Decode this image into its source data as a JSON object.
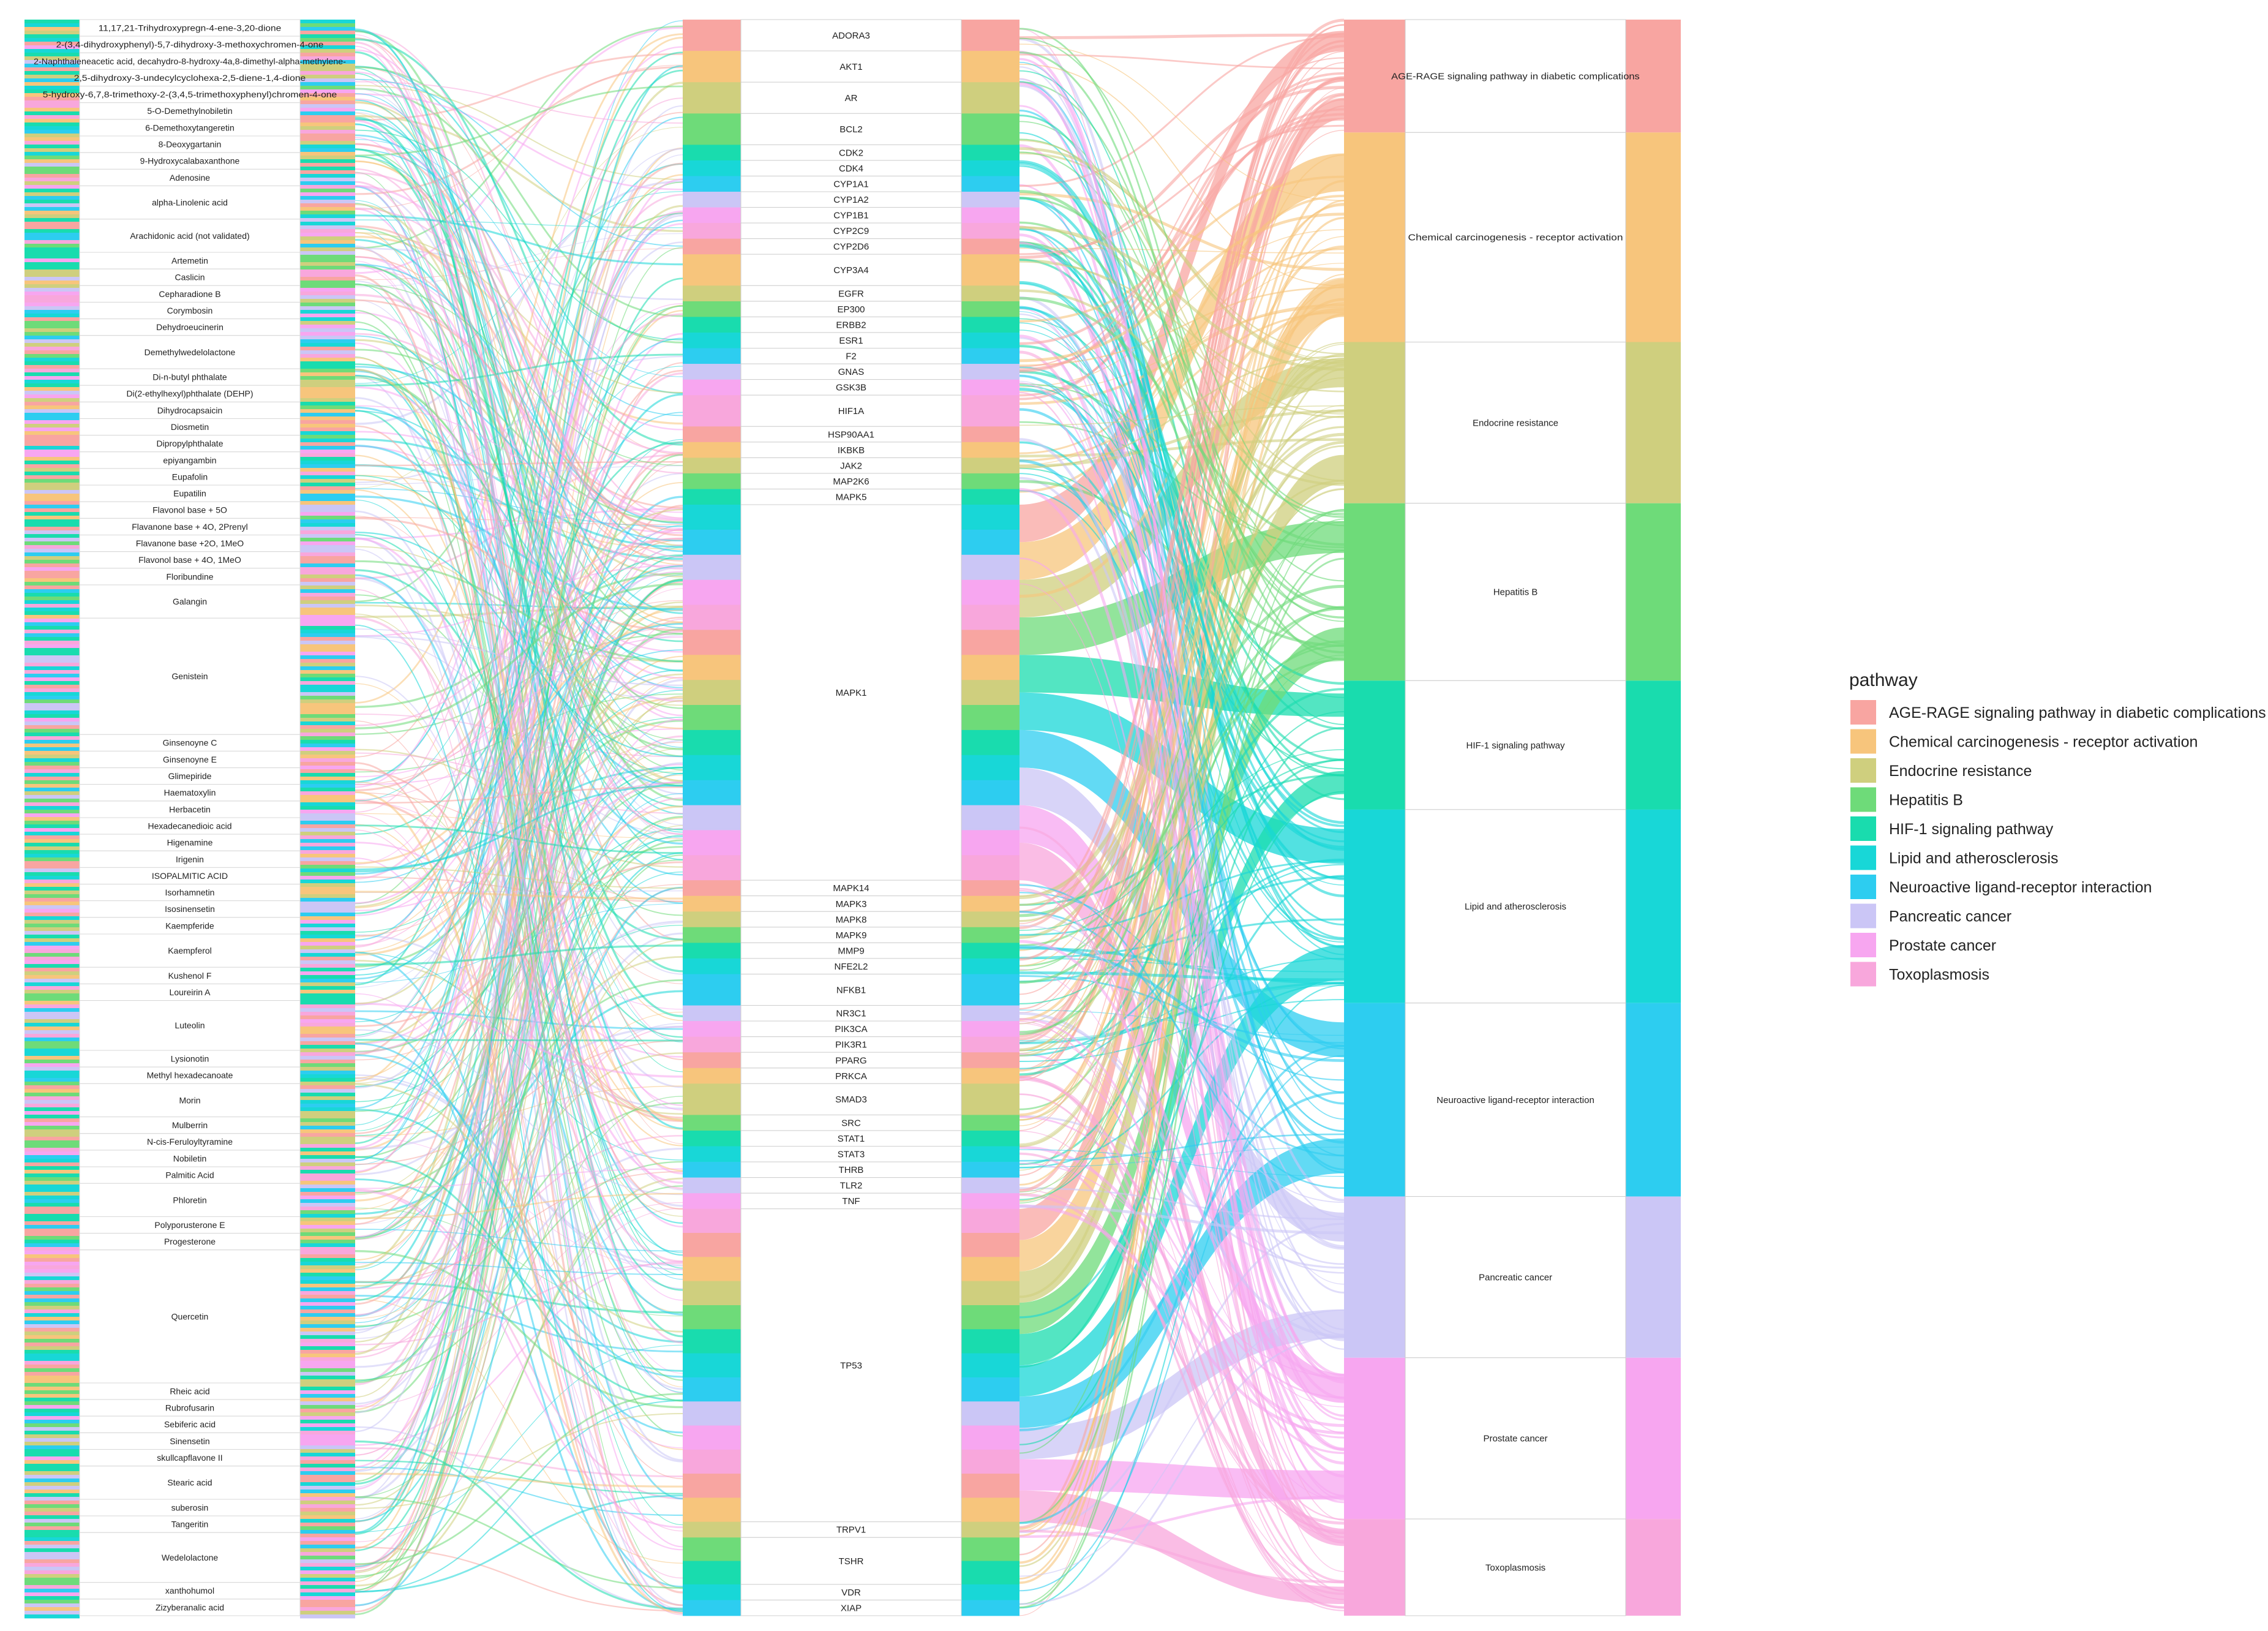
{
  "pathways": [
    {
      "label": "AGE-RAGE signaling pathway in diabetic complications",
      "color": "#F8A5A1"
    },
    {
      "label": "Chemical carcinogenesis - receptor activation",
      "color": "#F7C57C"
    },
    {
      "label": "Endocrine resistance",
      "color": "#CFCF7E"
    },
    {
      "label": "Hepatitis B",
      "color": "#6EDB79"
    },
    {
      "label": "HIF-1 signaling pathway",
      "color": "#19DCAE"
    },
    {
      "label": "Lipid and atherosclerosis",
      "color": "#18D7D7"
    },
    {
      "label": "Neuroactive ligand-receptor interaction",
      "color": "#2DCDF0"
    },
    {
      "label": "Pancreatic cancer",
      "color": "#CBC6F6"
    },
    {
      "label": "Prostate cancer",
      "color": "#F7A6F0"
    },
    {
      "label": "Toxoplasmosis",
      "color": "#F8A7DC"
    }
  ],
  "legend": {
    "title": "pathway"
  },
  "compounds": [
    {
      "label": "11,17,21-Trihydroxypregn-4-ene-3,20-dione",
      "w": 1
    },
    {
      "label": "2-(3,4-dihydroxyphenyl)-5,7-dihydroxy-3-methoxychromen-4-one",
      "w": 1
    },
    {
      "label": "2-Naphthaleneacetic acid, decahydro-8-hydroxy-4a,8-dimethyl-alpha-methylene-",
      "w": 1
    },
    {
      "label": "2,5-dihydroxy-3-undecylcyclohexa-2,5-diene-1,4-dione",
      "w": 1
    },
    {
      "label": "5-hydroxy-6,7,8-trimethoxy-2-(3,4,5-trimethoxyphenyl)chromen-4-one",
      "w": 1
    },
    {
      "label": "5-O-Demethylnobiletin",
      "w": 1
    },
    {
      "label": "6-Demethoxytangeretin",
      "w": 1
    },
    {
      "label": "8-Deoxygartanin",
      "w": 1
    },
    {
      "label": "9-Hydroxycalabaxanthone",
      "w": 1
    },
    {
      "label": "Adenosine",
      "w": 1
    },
    {
      "label": "alpha-Linolenic acid",
      "w": 2
    },
    {
      "label": "Arachidonic acid (not validated)",
      "w": 2
    },
    {
      "label": "Artemetin",
      "w": 1
    },
    {
      "label": "Caslicin",
      "w": 1
    },
    {
      "label": "Cepharadione B",
      "w": 1
    },
    {
      "label": "Corymbosin",
      "w": 1
    },
    {
      "label": "Dehydroeucinerin",
      "w": 1
    },
    {
      "label": "Demethylwedelolactone",
      "w": 2
    },
    {
      "label": "Di-n-butyl phthalate",
      "w": 1
    },
    {
      "label": "Di(2-ethylhexyl)phthalate (DEHP)",
      "w": 1
    },
    {
      "label": "Dihydrocapsaicin",
      "w": 1
    },
    {
      "label": "Diosmetin",
      "w": 1
    },
    {
      "label": "Dipropylphthalate",
      "w": 1
    },
    {
      "label": "epiyangambin",
      "w": 1
    },
    {
      "label": "Eupafolin",
      "w": 1
    },
    {
      "label": "Eupatilin",
      "w": 1
    },
    {
      "label": "Flavonol base + 5O",
      "w": 1
    },
    {
      "label": "Flavanone base + 4O, 2Prenyl",
      "w": 1
    },
    {
      "label": "Flavanone base +2O, 1MeO",
      "w": 1
    },
    {
      "label": "Flavonol base + 4O, 1MeO",
      "w": 1
    },
    {
      "label": "Floribundine",
      "w": 1
    },
    {
      "label": "Galangin",
      "w": 2
    },
    {
      "label": "Genistein",
      "w": 7
    },
    {
      "label": "Ginsenoyne C",
      "w": 1
    },
    {
      "label": "Ginsenoyne E",
      "w": 1
    },
    {
      "label": "Glimepiride",
      "w": 1
    },
    {
      "label": "Haematoxylin",
      "w": 1
    },
    {
      "label": "Herbacetin",
      "w": 1
    },
    {
      "label": "Hexadecanedioic acid",
      "w": 1
    },
    {
      "label": "Higenamine",
      "w": 1
    },
    {
      "label": "Irigenin",
      "w": 1
    },
    {
      "label": "ISOPALMITIC ACID",
      "w": 1
    },
    {
      "label": "Isorhamnetin",
      "w": 1
    },
    {
      "label": "Isosinensetin",
      "w": 1
    },
    {
      "label": "Kaempferide",
      "w": 1
    },
    {
      "label": "Kaempferol",
      "w": 2
    },
    {
      "label": "Kushenol F",
      "w": 1
    },
    {
      "label": "Loureirin A",
      "w": 1
    },
    {
      "label": "Luteolin",
      "w": 3
    },
    {
      "label": "Lysionotin",
      "w": 1
    },
    {
      "label": "Methyl hexadecanoate",
      "w": 1
    },
    {
      "label": "Morin",
      "w": 2
    },
    {
      "label": "Mulberrin",
      "w": 1
    },
    {
      "label": "N-cis-Feruloyltyramine",
      "w": 1
    },
    {
      "label": "Nobiletin",
      "w": 1
    },
    {
      "label": "Palmitic Acid",
      "w": 1
    },
    {
      "label": "Phloretin",
      "w": 2
    },
    {
      "label": "Polyporusterone E",
      "w": 1
    },
    {
      "label": "Progesterone",
      "w": 1
    },
    {
      "label": "Quercetin",
      "w": 8
    },
    {
      "label": "Rheic acid",
      "w": 1
    },
    {
      "label": "Rubrofusarin",
      "w": 1
    },
    {
      "label": "Sebiferic acid",
      "w": 1
    },
    {
      "label": "Sinensetin",
      "w": 1
    },
    {
      "label": "skullcapflavone II",
      "w": 1
    },
    {
      "label": "Stearic acid",
      "w": 2
    },
    {
      "label": "suberosin",
      "w": 1
    },
    {
      "label": "Tangeritin",
      "w": 1
    },
    {
      "label": "Wedelolactone",
      "w": 3
    },
    {
      "label": "xanthohumol",
      "w": 1
    },
    {
      "label": "Zizyberanalic acid",
      "w": 1
    }
  ],
  "targets": [
    {
      "label": "ADORA3",
      "w": 2
    },
    {
      "label": "AKT1",
      "w": 2
    },
    {
      "label": "AR",
      "w": 2
    },
    {
      "label": "BCL2",
      "w": 2
    },
    {
      "label": "CDK2",
      "w": 1
    },
    {
      "label": "CDK4",
      "w": 1
    },
    {
      "label": "CYP1A1",
      "w": 1
    },
    {
      "label": "CYP1A2",
      "w": 1
    },
    {
      "label": "CYP1B1",
      "w": 1
    },
    {
      "label": "CYP2C9",
      "w": 1
    },
    {
      "label": "CYP2D6",
      "w": 1
    },
    {
      "label": "CYP3A4",
      "w": 2
    },
    {
      "label": "EGFR",
      "w": 1
    },
    {
      "label": "EP300",
      "w": 1
    },
    {
      "label": "ERBB2",
      "w": 1
    },
    {
      "label": "ESR1",
      "w": 1
    },
    {
      "label": "F2",
      "w": 1
    },
    {
      "label": "GNAS",
      "w": 1
    },
    {
      "label": "GSK3B",
      "w": 1
    },
    {
      "label": "HIF1A",
      "w": 2
    },
    {
      "label": "HSP90AA1",
      "w": 1
    },
    {
      "label": "IKBKB",
      "w": 1
    },
    {
      "label": "JAK2",
      "w": 1
    },
    {
      "label": "MAP2K6",
      "w": 1
    },
    {
      "label": "MAPK5",
      "w": 1
    },
    {
      "label": "MAPK1",
      "w": 24
    },
    {
      "label": "MAPK14",
      "w": 1
    },
    {
      "label": "MAPK3",
      "w": 1
    },
    {
      "label": "MAPK8",
      "w": 1
    },
    {
      "label": "MAPK9",
      "w": 1
    },
    {
      "label": "MMP9",
      "w": 1
    },
    {
      "label": "NFE2L2",
      "w": 1
    },
    {
      "label": "NFKB1",
      "w": 2
    },
    {
      "label": "NR3C1",
      "w": 1
    },
    {
      "label": "PIK3CA",
      "w": 1
    },
    {
      "label": "PIK3R1",
      "w": 1
    },
    {
      "label": "PPARG",
      "w": 1
    },
    {
      "label": "PRKCA",
      "w": 1
    },
    {
      "label": "SMAD3",
      "w": 2
    },
    {
      "label": "SRC",
      "w": 1
    },
    {
      "label": "STAT1",
      "w": 1
    },
    {
      "label": "STAT3",
      "w": 1
    },
    {
      "label": "THRB",
      "w": 1
    },
    {
      "label": "TLR2",
      "w": 1
    },
    {
      "label": "TNF",
      "w": 1
    },
    {
      "label": "TP53",
      "w": 20
    },
    {
      "label": "TRPV1",
      "w": 1
    },
    {
      "label": "TSHR",
      "w": 3
    },
    {
      "label": "VDR",
      "w": 1
    },
    {
      "label": "XIAP",
      "w": 1
    }
  ],
  "pathway_nodes": [
    {
      "label": "AGE-RAGE signaling pathway in diabetic complications",
      "w": 7
    },
    {
      "label": "Chemical carcinogenesis - receptor activation",
      "w": 13
    },
    {
      "label": "Endocrine resistance",
      "w": 10
    },
    {
      "label": "Hepatitis B",
      "w": 11
    },
    {
      "label": "HIF-1 signaling pathway",
      "w": 8
    },
    {
      "label": "Lipid and atherosclerosis",
      "w": 12
    },
    {
      "label": "Neuroactive ligand-receptor interaction",
      "w": 12
    },
    {
      "label": "Pancreatic cancer",
      "w": 10
    },
    {
      "label": "Prostate cancer",
      "w": 10
    },
    {
      "label": "Toxoplasmosis",
      "w": 6
    }
  ]
}
